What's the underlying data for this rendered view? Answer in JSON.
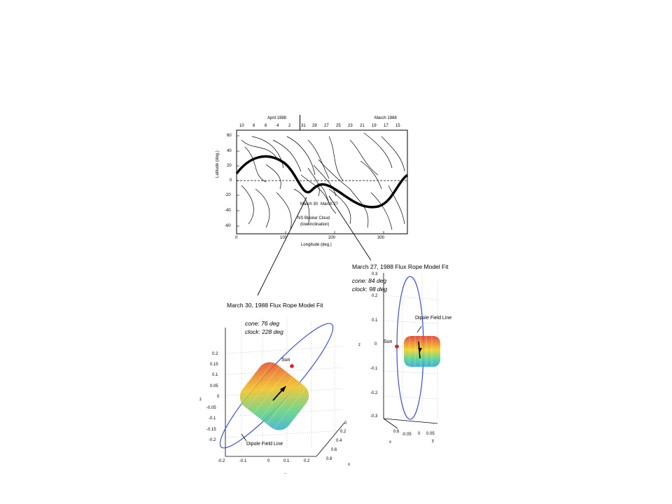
{
  "top_panel": {
    "header_left": "April 1988",
    "header_right": "March 1988",
    "date_ticks": [
      "10",
      "8",
      "6",
      "4",
      "2",
      "31",
      "29",
      "27",
      "25",
      "23",
      "21",
      "19",
      "17",
      "15"
    ],
    "y_label": "Latitude (deg.)",
    "y_ticks": [
      "60",
      "40",
      "20",
      "0",
      "-20",
      "-40",
      "-60"
    ],
    "x_label": "Longitude (deg.)",
    "x_ticks": [
      "0",
      "100",
      "200",
      "300"
    ],
    "label_march30": "March 30",
    "label_march27": "March 27",
    "cloud_line1": "NS Bipolar Cloud",
    "cloud_line2": "(low inclination)"
  },
  "right_panel": {
    "title": "March 27, 1988 Flux Rope Model Fit",
    "cone": "cone:  84 deg",
    "clock": "clock: 98 deg",
    "dipole_label": "Dipole Field Line",
    "sun_label": "Sun",
    "z_label": "z",
    "x_label": "x",
    "y_label": "y",
    "z_ticks": [
      "0.3",
      "0.2",
      "0.1",
      "0",
      "-0.1",
      "-0.2",
      "-0.3"
    ],
    "x_ticks": [
      "0.6",
      "-0.05",
      "0",
      "0.05"
    ]
  },
  "left_panel": {
    "title": "March 30, 1988 Flux Rope Model Fit",
    "cone": "cone:  76 deg",
    "clock": "clock: 228 deg",
    "sun_label": "Sun",
    "dipole_label": "Dipole Field Line",
    "z_label": "z",
    "x_label": "x",
    "z_ticks": [
      "0.2",
      "0.15",
      "0.1",
      "0.05",
      "0",
      "-0.05",
      "-0.1",
      "-0.15",
      "-0.2"
    ],
    "y_ticks": [
      "-0.2",
      "-0.1",
      "0",
      "0.1",
      "0.2"
    ],
    "x_ticks": [
      "0",
      "0.2",
      "0.4",
      "0.6",
      "0.8"
    ],
    "footer_mark": ".."
  },
  "colors": {
    "loop": "#3b4fd6",
    "sun": "#e02020",
    "cyl_top": "#e23a2a",
    "cyl_bottom": "#2aa6e0"
  }
}
